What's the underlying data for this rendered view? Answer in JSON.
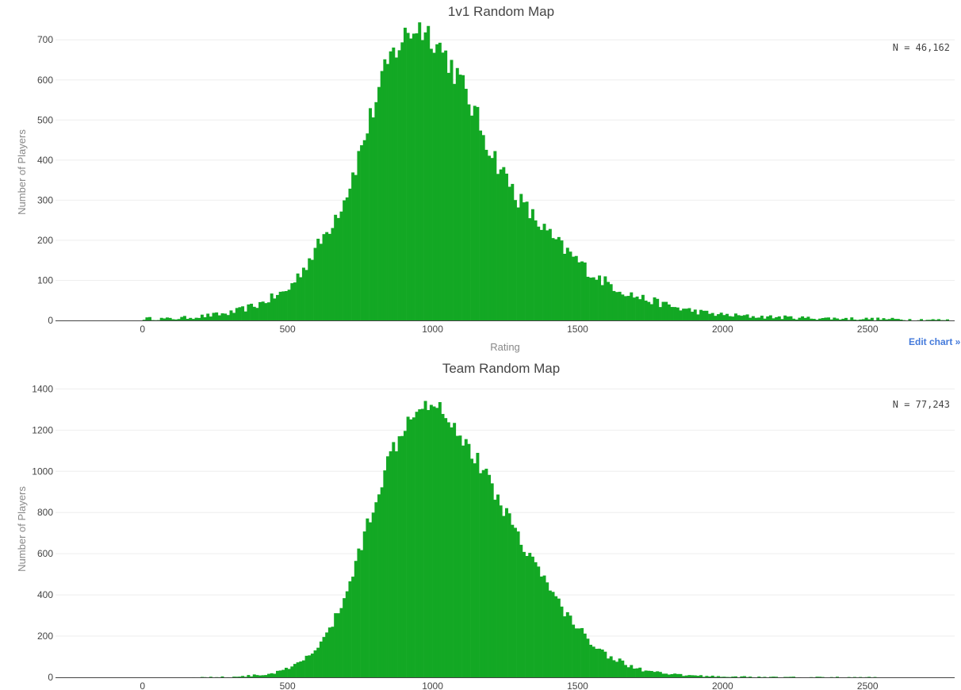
{
  "theme": {
    "bar_color": "#13a824",
    "axis_color": "#444444",
    "grid_color": "#eeeeee",
    "title_color": "#444444",
    "label_color": "#888888"
  },
  "edit_link": "Edit chart »",
  "chart_data": [
    {
      "type": "bar",
      "title": "1v1 Random Map",
      "annotation": "N = 46,162",
      "xlabel": "Rating",
      "ylabel": "Number of Players",
      "xlim": [
        -300,
        2800
      ],
      "ylim": [
        0,
        740
      ],
      "xticks": [
        0,
        500,
        1000,
        1500,
        2000,
        2500
      ],
      "yticks": [
        0,
        100,
        200,
        300,
        400,
        500,
        600,
        700
      ],
      "grid": true,
      "bin_width": 10,
      "profile": {
        "peak_x": 940,
        "peak_y": 735,
        "left_sigma": 165,
        "right_sigma": 300,
        "start": 0,
        "end": 2780,
        "samples": [
          [
            0,
            5
          ],
          [
            100,
            4
          ],
          [
            200,
            10
          ],
          [
            300,
            18
          ],
          [
            400,
            40
          ],
          [
            500,
            75
          ],
          [
            550,
            125
          ],
          [
            600,
            180
          ],
          [
            650,
            240
          ],
          [
            700,
            310
          ],
          [
            750,
            420
          ],
          [
            800,
            540
          ],
          [
            850,
            650
          ],
          [
            900,
            705
          ],
          [
            950,
            735
          ],
          [
            1000,
            710
          ],
          [
            1050,
            655
          ],
          [
            1100,
            590
          ],
          [
            1150,
            510
          ],
          [
            1200,
            425
          ],
          [
            1250,
            360
          ],
          [
            1300,
            300
          ],
          [
            1350,
            255
          ],
          [
            1400,
            215
          ],
          [
            1450,
            180
          ],
          [
            1500,
            150
          ],
          [
            1550,
            115
          ],
          [
            1600,
            95
          ],
          [
            1650,
            75
          ],
          [
            1700,
            60
          ],
          [
            1750,
            50
          ],
          [
            1800,
            40
          ],
          [
            1850,
            30
          ],
          [
            1900,
            24
          ],
          [
            1950,
            18
          ],
          [
            2000,
            14
          ],
          [
            2100,
            10
          ],
          [
            2200,
            8
          ],
          [
            2300,
            6
          ],
          [
            2400,
            5
          ],
          [
            2500,
            4
          ],
          [
            2600,
            3
          ],
          [
            2700,
            2
          ],
          [
            2780,
            1
          ]
        ]
      }
    },
    {
      "type": "bar",
      "title": "Team Random Map",
      "annotation": "N = 77,243",
      "xlabel": "",
      "ylabel": "Number of Players",
      "xlim": [
        -300,
        2800
      ],
      "ylim": [
        0,
        1440
      ],
      "xticks": [
        0,
        500,
        1000,
        1500,
        2000,
        2500
      ],
      "yticks": [
        0,
        200,
        400,
        600,
        800,
        1000,
        1200,
        1400
      ],
      "grid": true,
      "bin_width": 10,
      "profile": {
        "start": 170,
        "end": 2560,
        "samples": [
          [
            170,
            0
          ],
          [
            300,
            2
          ],
          [
            400,
            10
          ],
          [
            450,
            20
          ],
          [
            500,
            40
          ],
          [
            550,
            75
          ],
          [
            600,
            140
          ],
          [
            650,
            240
          ],
          [
            700,
            400
          ],
          [
            750,
            620
          ],
          [
            800,
            860
          ],
          [
            850,
            1060
          ],
          [
            900,
            1230
          ],
          [
            950,
            1330
          ],
          [
            1000,
            1350
          ],
          [
            1050,
            1280
          ],
          [
            1100,
            1170
          ],
          [
            1150,
            1060
          ],
          [
            1200,
            940
          ],
          [
            1250,
            810
          ],
          [
            1300,
            680
          ],
          [
            1350,
            560
          ],
          [
            1400,
            440
          ],
          [
            1450,
            330
          ],
          [
            1500,
            240
          ],
          [
            1550,
            170
          ],
          [
            1600,
            110
          ],
          [
            1650,
            75
          ],
          [
            1700,
            45
          ],
          [
            1750,
            28
          ],
          [
            1800,
            16
          ],
          [
            1900,
            8
          ],
          [
            2000,
            4
          ],
          [
            2100,
            2
          ],
          [
            2200,
            1
          ],
          [
            2560,
            0
          ]
        ]
      }
    }
  ]
}
